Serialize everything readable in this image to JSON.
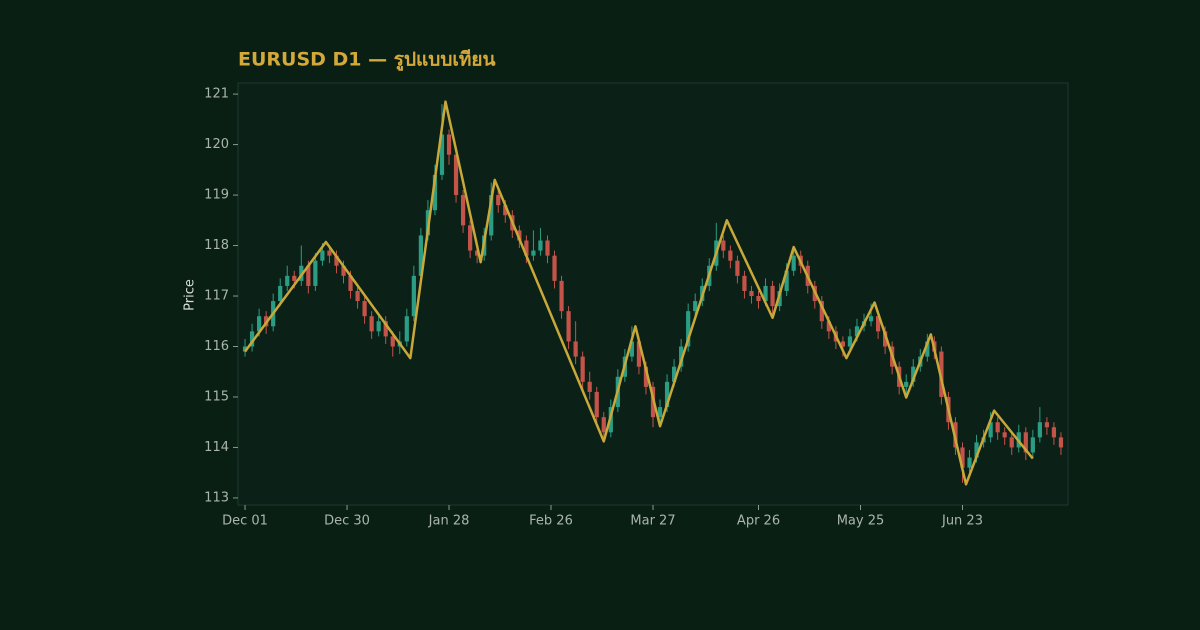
{
  "chart_data": {
    "type": "candlestick",
    "title": "EURUSD D1 — รูปแบบเทียน",
    "y_label": "Price",
    "x": [
      "Dec 01",
      "Dec 03",
      "Dec 05",
      "Dec 07",
      "Dec 09",
      "Dec 11",
      "Dec 13",
      "Dec 15",
      "Dec 17",
      "Dec 19",
      "Dec 21",
      "Dec 23",
      "Dec 25",
      "Dec 27",
      "Dec 29",
      "Dec 31",
      "Jan 02",
      "Jan 04",
      "Jan 06",
      "Jan 08",
      "Jan 10",
      "Jan 12",
      "Jan 14",
      "Jan 16",
      "Jan 18",
      "Jan 20",
      "Jan 22",
      "Jan 24",
      "Jan 26",
      "Jan 28",
      "Jan 30",
      "Feb 01",
      "Feb 03",
      "Feb 05",
      "Feb 07",
      "Feb 09",
      "Feb 11",
      "Feb 13",
      "Feb 15",
      "Feb 17",
      "Feb 19",
      "Feb 21",
      "Feb 23",
      "Feb 25",
      "Feb 27",
      "Mar 01",
      "Mar 03",
      "Mar 05",
      "Mar 07",
      "Mar 09",
      "Mar 11",
      "Mar 13",
      "Mar 15",
      "Mar 17",
      "Mar 19",
      "Mar 21",
      "Mar 23",
      "Mar 25",
      "Mar 27",
      "Mar 29",
      "Mar 31",
      "Apr 02",
      "Apr 04",
      "Apr 06",
      "Apr 08",
      "Apr 10",
      "Apr 12",
      "Apr 14",
      "Apr 16",
      "Apr 18",
      "Apr 20",
      "Apr 22",
      "Apr 24",
      "Apr 26",
      "Apr 28",
      "Apr 30",
      "May 02",
      "May 04",
      "May 06",
      "May 08",
      "May 10",
      "May 12",
      "May 14",
      "May 16",
      "May 18",
      "May 20",
      "May 22",
      "May 24",
      "May 26",
      "May 28",
      "May 30",
      "Jun 01",
      "Jun 03",
      "Jun 05",
      "Jun 07",
      "Jun 09",
      "Jun 11",
      "Jun 13",
      "Jun 15",
      "Jun 17",
      "Jun 19",
      "Jun 21",
      "Jun 23",
      "Jun 25",
      "Jun 27",
      "Jun 29",
      "Jul 01",
      "Jul 03",
      "Jul 05",
      "Jul 07",
      "Jul 09",
      "Jul 11",
      "Jul 13",
      "Jul 15",
      "Jul 17",
      "Jul 19",
      "Jul 21"
    ],
    "ohlc": [
      [
        115.9,
        116.15,
        115.8,
        116.0
      ],
      [
        116.0,
        116.45,
        115.9,
        116.3
      ],
      [
        116.3,
        116.75,
        116.2,
        116.6
      ],
      [
        116.6,
        116.7,
        116.25,
        116.4
      ],
      [
        116.4,
        117.05,
        116.3,
        116.9
      ],
      [
        116.9,
        117.35,
        116.8,
        117.2
      ],
      [
        117.2,
        117.6,
        117.1,
        117.4
      ],
      [
        117.4,
        117.5,
        117.15,
        117.3
      ],
      [
        117.3,
        118.0,
        117.2,
        117.6
      ],
      [
        117.6,
        117.7,
        117.05,
        117.2
      ],
      [
        117.2,
        117.85,
        117.1,
        117.7
      ],
      [
        117.7,
        118.05,
        117.6,
        117.9
      ],
      [
        117.9,
        118.0,
        117.65,
        117.8
      ],
      [
        117.8,
        117.9,
        117.45,
        117.6
      ],
      [
        117.6,
        117.7,
        117.25,
        117.4
      ],
      [
        117.4,
        117.5,
        116.95,
        117.1
      ],
      [
        117.1,
        117.2,
        116.75,
        116.9
      ],
      [
        116.9,
        117.0,
        116.45,
        116.6
      ],
      [
        116.6,
        116.7,
        116.15,
        116.3
      ],
      [
        116.3,
        116.65,
        116.2,
        116.5
      ],
      [
        116.5,
        116.6,
        116.05,
        116.2
      ],
      [
        116.2,
        116.3,
        115.8,
        116.0
      ],
      [
        116.0,
        116.3,
        115.85,
        116.1
      ],
      [
        116.1,
        116.75,
        116.0,
        116.6
      ],
      [
        116.6,
        117.6,
        116.5,
        117.4
      ],
      [
        117.4,
        118.35,
        117.3,
        118.2
      ],
      [
        118.2,
        118.9,
        118.1,
        118.7
      ],
      [
        118.7,
        119.6,
        118.6,
        119.4
      ],
      [
        119.4,
        120.8,
        119.3,
        120.2
      ],
      [
        120.2,
        120.3,
        119.6,
        119.8
      ],
      [
        119.8,
        119.9,
        118.85,
        119.0
      ],
      [
        119.0,
        119.1,
        118.25,
        118.4
      ],
      [
        118.4,
        118.5,
        117.75,
        117.9
      ],
      [
        117.9,
        118.0,
        117.65,
        117.8
      ],
      [
        117.8,
        118.35,
        117.7,
        118.2
      ],
      [
        118.2,
        119.25,
        118.1,
        119.0
      ],
      [
        119.0,
        119.1,
        118.65,
        118.8
      ],
      [
        118.8,
        118.9,
        118.45,
        118.6
      ],
      [
        118.6,
        118.7,
        118.15,
        118.3
      ],
      [
        118.3,
        118.4,
        117.95,
        118.1
      ],
      [
        118.1,
        118.2,
        117.65,
        117.8
      ],
      [
        117.8,
        118.3,
        117.7,
        117.9
      ],
      [
        117.9,
        118.35,
        117.8,
        118.1
      ],
      [
        118.1,
        118.2,
        117.65,
        117.8
      ],
      [
        117.8,
        117.9,
        117.15,
        117.3
      ],
      [
        117.3,
        117.4,
        116.55,
        116.7
      ],
      [
        116.7,
        116.8,
        115.95,
        116.1
      ],
      [
        116.1,
        116.5,
        115.65,
        115.8
      ],
      [
        115.8,
        115.9,
        115.15,
        115.3
      ],
      [
        115.3,
        115.5,
        114.95,
        115.1
      ],
      [
        115.1,
        115.2,
        114.45,
        114.6
      ],
      [
        114.6,
        114.7,
        114.1,
        114.3
      ],
      [
        114.3,
        114.95,
        114.2,
        114.8
      ],
      [
        114.8,
        115.55,
        114.7,
        115.4
      ],
      [
        115.4,
        115.95,
        115.3,
        115.8
      ],
      [
        115.8,
        116.4,
        115.7,
        116.1
      ],
      [
        116.1,
        116.2,
        115.45,
        115.6
      ],
      [
        115.6,
        115.7,
        115.05,
        115.2
      ],
      [
        115.2,
        115.3,
        114.4,
        114.6
      ],
      [
        114.6,
        114.95,
        114.45,
        114.8
      ],
      [
        114.8,
        115.45,
        114.7,
        115.3
      ],
      [
        115.3,
        115.75,
        115.2,
        115.6
      ],
      [
        115.6,
        116.15,
        115.5,
        116.0
      ],
      [
        116.0,
        116.85,
        115.9,
        116.7
      ],
      [
        116.7,
        117.05,
        116.6,
        116.9
      ],
      [
        116.9,
        117.35,
        116.8,
        117.2
      ],
      [
        117.2,
        117.75,
        117.1,
        117.6
      ],
      [
        117.6,
        118.45,
        117.5,
        118.1
      ],
      [
        118.1,
        118.2,
        117.75,
        117.9
      ],
      [
        117.9,
        118.0,
        117.55,
        117.7
      ],
      [
        117.7,
        117.8,
        117.25,
        117.4
      ],
      [
        117.4,
        117.5,
        116.95,
        117.1
      ],
      [
        117.1,
        117.2,
        116.85,
        117.0
      ],
      [
        117.0,
        117.1,
        116.75,
        116.9
      ],
      [
        116.9,
        117.35,
        116.8,
        117.2
      ],
      [
        117.2,
        117.3,
        116.6,
        116.8
      ],
      [
        116.8,
        117.25,
        116.7,
        117.1
      ],
      [
        117.1,
        117.65,
        117.0,
        117.5
      ],
      [
        117.5,
        117.95,
        117.4,
        117.8
      ],
      [
        117.8,
        117.9,
        117.45,
        117.6
      ],
      [
        117.6,
        117.7,
        117.05,
        117.2
      ],
      [
        117.2,
        117.3,
        116.75,
        116.9
      ],
      [
        116.9,
        117.0,
        116.35,
        116.5
      ],
      [
        116.5,
        116.6,
        116.15,
        116.3
      ],
      [
        116.3,
        116.4,
        115.95,
        116.1
      ],
      [
        116.1,
        116.2,
        115.8,
        116.0
      ],
      [
        116.0,
        116.35,
        115.9,
        116.2
      ],
      [
        116.2,
        116.55,
        116.1,
        116.4
      ],
      [
        116.4,
        116.65,
        116.3,
        116.5
      ],
      [
        116.5,
        116.85,
        116.4,
        116.6
      ],
      [
        116.6,
        116.7,
        116.15,
        116.3
      ],
      [
        116.3,
        116.4,
        115.85,
        116.0
      ],
      [
        116.0,
        116.1,
        115.45,
        115.6
      ],
      [
        115.6,
        115.7,
        115.05,
        115.2
      ],
      [
        115.2,
        115.45,
        115.0,
        115.3
      ],
      [
        115.3,
        115.75,
        115.2,
        115.6
      ],
      [
        115.6,
        115.95,
        115.5,
        115.8
      ],
      [
        115.8,
        116.25,
        115.7,
        116.1
      ],
      [
        116.1,
        116.2,
        115.75,
        115.9
      ],
      [
        115.9,
        116.0,
        114.85,
        115.0
      ],
      [
        115.0,
        115.1,
        114.35,
        114.5
      ],
      [
        114.5,
        114.6,
        113.85,
        114.0
      ],
      [
        114.0,
        114.1,
        113.3,
        113.6
      ],
      [
        113.6,
        113.95,
        113.5,
        113.8
      ],
      [
        113.8,
        114.25,
        113.7,
        114.1
      ],
      [
        114.1,
        114.35,
        114.0,
        114.2
      ],
      [
        114.2,
        114.7,
        114.1,
        114.5
      ],
      [
        114.5,
        114.6,
        114.15,
        114.3
      ],
      [
        114.3,
        114.4,
        114.05,
        114.2
      ],
      [
        114.2,
        114.3,
        113.85,
        114.0
      ],
      [
        114.0,
        114.45,
        113.9,
        114.3
      ],
      [
        114.3,
        114.4,
        113.75,
        113.9
      ],
      [
        113.9,
        114.35,
        113.8,
        114.2
      ],
      [
        114.2,
        114.8,
        114.1,
        114.5
      ],
      [
        114.5,
        114.6,
        114.25,
        114.4
      ],
      [
        114.4,
        114.5,
        114.05,
        114.2
      ],
      [
        114.2,
        114.3,
        113.85,
        114.0
      ]
    ],
    "up_color": "#2a9d84",
    "down_color": "#c4534a",
    "zigzag": {
      "color": "#c9a83a",
      "x": [
        "Dec 01",
        "Dec 24",
        "Jan 17",
        "Jan 27",
        "Feb 06",
        "Feb 10",
        "Mar 13",
        "Mar 22",
        "Mar 29",
        "Apr 17",
        "Apr 30",
        "May 06",
        "May 21",
        "May 29",
        "Jun 07",
        "Jun 14",
        "Jun 24",
        "Jul 02",
        "Jul 13"
      ],
      "values": [
        115.9,
        118.07,
        115.77,
        120.85,
        117.67,
        119.3,
        114.12,
        116.4,
        114.42,
        118.5,
        116.57,
        117.97,
        115.77,
        116.87,
        114.99,
        116.24,
        113.27,
        114.73,
        113.78
      ]
    },
    "xlim": [
      "Nov 29",
      "Jul 23"
    ],
    "xticks": [
      "Dec 01",
      "Dec 30",
      "Jan 28",
      "Feb 26",
      "Mar 27",
      "Apr 26",
      "May 25",
      "Jun 23"
    ],
    "ylim": [
      112.86,
      121.22
    ],
    "yticks": [
      113,
      114,
      115,
      116,
      117,
      118,
      119,
      120,
      121
    ]
  }
}
